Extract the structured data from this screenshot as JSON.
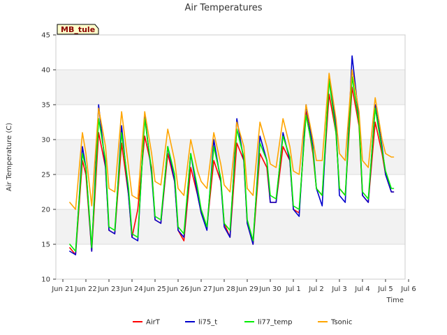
{
  "chart_data": {
    "type": "line",
    "title": "Air Temperatures",
    "xlabel": "Time",
    "ylabel": "Air Temperature (C)",
    "site_label": "MB_tule",
    "ylim": [
      10,
      45
    ],
    "yticks": [
      10,
      15,
      20,
      25,
      30,
      35,
      40,
      45
    ],
    "xlim": [
      "Jun 21",
      "Jul 6"
    ],
    "xtick_labels": [
      "Jun 21",
      "Jun 22",
      "Jun 23",
      "Jun 24",
      "Jun 25",
      "Jun 26",
      "Jun 27",
      "Jun 28",
      "Jun 29",
      "Jun 30",
      "Jul 1",
      "Jul 2",
      "Jul 3",
      "Jul 4",
      "Jul 5",
      "Jul 6"
    ],
    "grid": true,
    "legend_position": "bottom",
    "daily_min_max_note": "",
    "series": [
      {
        "name": "AirT",
        "color": "#ff0000",
        "x": [
          0.3,
          0.55,
          0.85,
          1.0,
          1.25,
          1.55,
          1.85,
          2.0,
          2.25,
          2.55,
          2.85,
          3.0,
          3.25,
          3.55,
          3.85,
          4.0,
          4.25,
          4.55,
          4.85,
          5.0,
          5.25,
          5.55,
          5.85,
          6.0,
          6.25,
          6.55,
          6.85,
          7.0,
          7.25,
          7.55,
          7.85,
          8.0,
          8.25,
          8.55,
          8.85,
          9.0,
          9.25,
          9.55,
          9.85,
          10.0,
          10.25,
          10.55,
          10.85,
          11.0,
          11.25,
          11.55,
          11.85,
          12.0,
          12.25,
          12.55,
          12.85,
          13.0,
          13.25,
          13.55,
          13.85,
          14.0,
          14.25,
          14.35
        ],
        "values": [
          14.5,
          13.5,
          27,
          25,
          14,
          31,
          26,
          17,
          16.5,
          29.5,
          22,
          16,
          20,
          30.5,
          26,
          18.5,
          18,
          28,
          24,
          17,
          15.5,
          26,
          22,
          19.5,
          17.5,
          27,
          24,
          18,
          16,
          29.5,
          27,
          18,
          15,
          28,
          26,
          21,
          21,
          29,
          27,
          20,
          19.5,
          34,
          28,
          23,
          22,
          36.5,
          31,
          23,
          22,
          37.5,
          32,
          22,
          21,
          32.5,
          28,
          25,
          22.5,
          22.5
        ]
      },
      {
        "name": "li75_t",
        "color": "#0000cc",
        "x": [
          0.3,
          0.55,
          0.85,
          1.0,
          1.25,
          1.55,
          1.85,
          2.0,
          2.25,
          2.55,
          2.85,
          3.0,
          3.25,
          3.55,
          3.85,
          4.0,
          4.25,
          4.55,
          4.85,
          5.0,
          5.25,
          5.55,
          5.85,
          6.0,
          6.25,
          6.55,
          6.85,
          7.0,
          7.25,
          7.55,
          7.85,
          8.0,
          8.25,
          8.55,
          8.85,
          9.0,
          9.25,
          9.55,
          9.85,
          10.0,
          10.25,
          10.55,
          10.85,
          11.0,
          11.25,
          11.55,
          11.85,
          12.0,
          12.25,
          12.55,
          12.85,
          13.0,
          13.25,
          13.55,
          13.85,
          14.0,
          14.25,
          14.35
        ],
        "values": [
          14,
          13.5,
          29,
          26,
          14,
          35,
          26,
          17,
          16.5,
          32,
          22,
          16,
          15.5,
          33.5,
          25,
          18.5,
          18,
          29,
          24,
          17,
          16,
          28,
          22,
          19.5,
          17,
          30,
          24,
          17.5,
          16,
          33,
          27,
          18,
          15,
          30.5,
          27,
          21,
          21,
          31,
          27,
          20,
          19,
          35,
          29,
          23,
          20.5,
          39,
          32,
          22,
          21,
          42,
          33,
          22,
          21,
          35,
          29,
          25,
          22.5,
          22.5
        ]
      },
      {
        "name": "li77_temp",
        "color": "#00ee00",
        "x": [
          0.3,
          0.55,
          0.85,
          1.0,
          1.25,
          1.55,
          1.85,
          2.0,
          2.25,
          2.55,
          2.85,
          3.0,
          3.25,
          3.55,
          3.85,
          4.0,
          4.25,
          4.55,
          4.85,
          5.0,
          5.25,
          5.55,
          5.85,
          6.0,
          6.25,
          6.55,
          6.85,
          7.0,
          7.25,
          7.55,
          7.85,
          8.0,
          8.25,
          8.55,
          8.85,
          9.0,
          9.25,
          9.55,
          9.85,
          10.0,
          10.25,
          10.55,
          10.85,
          11.0,
          11.25,
          11.55,
          11.85,
          12.0,
          12.25,
          12.55,
          12.85,
          13.0,
          13.25,
          13.55,
          13.85,
          14.0,
          14.25,
          14.35
        ],
        "values": [
          15,
          14,
          28,
          26,
          14.5,
          33,
          27,
          17.5,
          17,
          31,
          23,
          16.5,
          16,
          33,
          25.5,
          19,
          18.5,
          29,
          25,
          17.5,
          16.5,
          28,
          23,
          20,
          17.5,
          29,
          24.5,
          18,
          17,
          31.5,
          27.5,
          18.5,
          15.5,
          29.5,
          27,
          22,
          21.5,
          30.5,
          27.5,
          20.5,
          20,
          33.5,
          28.5,
          23,
          22,
          38.5,
          31,
          23,
          22,
          39,
          32.5,
          22.5,
          21.5,
          34.5,
          28.5,
          25.5,
          23,
          23
        ]
      },
      {
        "name": "Tsonic",
        "color": "#ffa500",
        "x": [
          0.3,
          0.55,
          0.85,
          1.0,
          1.25,
          1.55,
          1.85,
          2.0,
          2.25,
          2.55,
          2.85,
          3.0,
          3.25,
          3.55,
          3.85,
          4.0,
          4.25,
          4.55,
          4.85,
          5.0,
          5.25,
          5.55,
          5.85,
          6.0,
          6.25,
          6.55,
          6.85,
          7.0,
          7.25,
          7.55,
          7.85,
          8.0,
          8.25,
          8.55,
          8.85,
          9.0,
          9.25,
          9.55,
          9.85,
          10.0,
          10.25,
          10.55,
          10.85,
          11.0,
          11.25,
          11.55,
          11.85,
          12.0,
          12.25,
          12.55,
          12.85,
          13.0,
          13.25,
          13.55,
          13.85,
          14.0,
          14.25,
          14.35
        ],
        "values": [
          21,
          20,
          31,
          28,
          20.5,
          34.5,
          29,
          23,
          22.5,
          34,
          26,
          22,
          21.5,
          34,
          28,
          24,
          23.5,
          31.5,
          27,
          23,
          22,
          30,
          25.5,
          24,
          23,
          31,
          26.5,
          23.5,
          22.5,
          32.5,
          29,
          23,
          22,
          32.5,
          29,
          26.5,
          26,
          33,
          29,
          25.5,
          25,
          35,
          30,
          27,
          27,
          39.5,
          33,
          28,
          27,
          40,
          34,
          27,
          26,
          36,
          30,
          28,
          27.5,
          27.5
        ]
      }
    ]
  }
}
